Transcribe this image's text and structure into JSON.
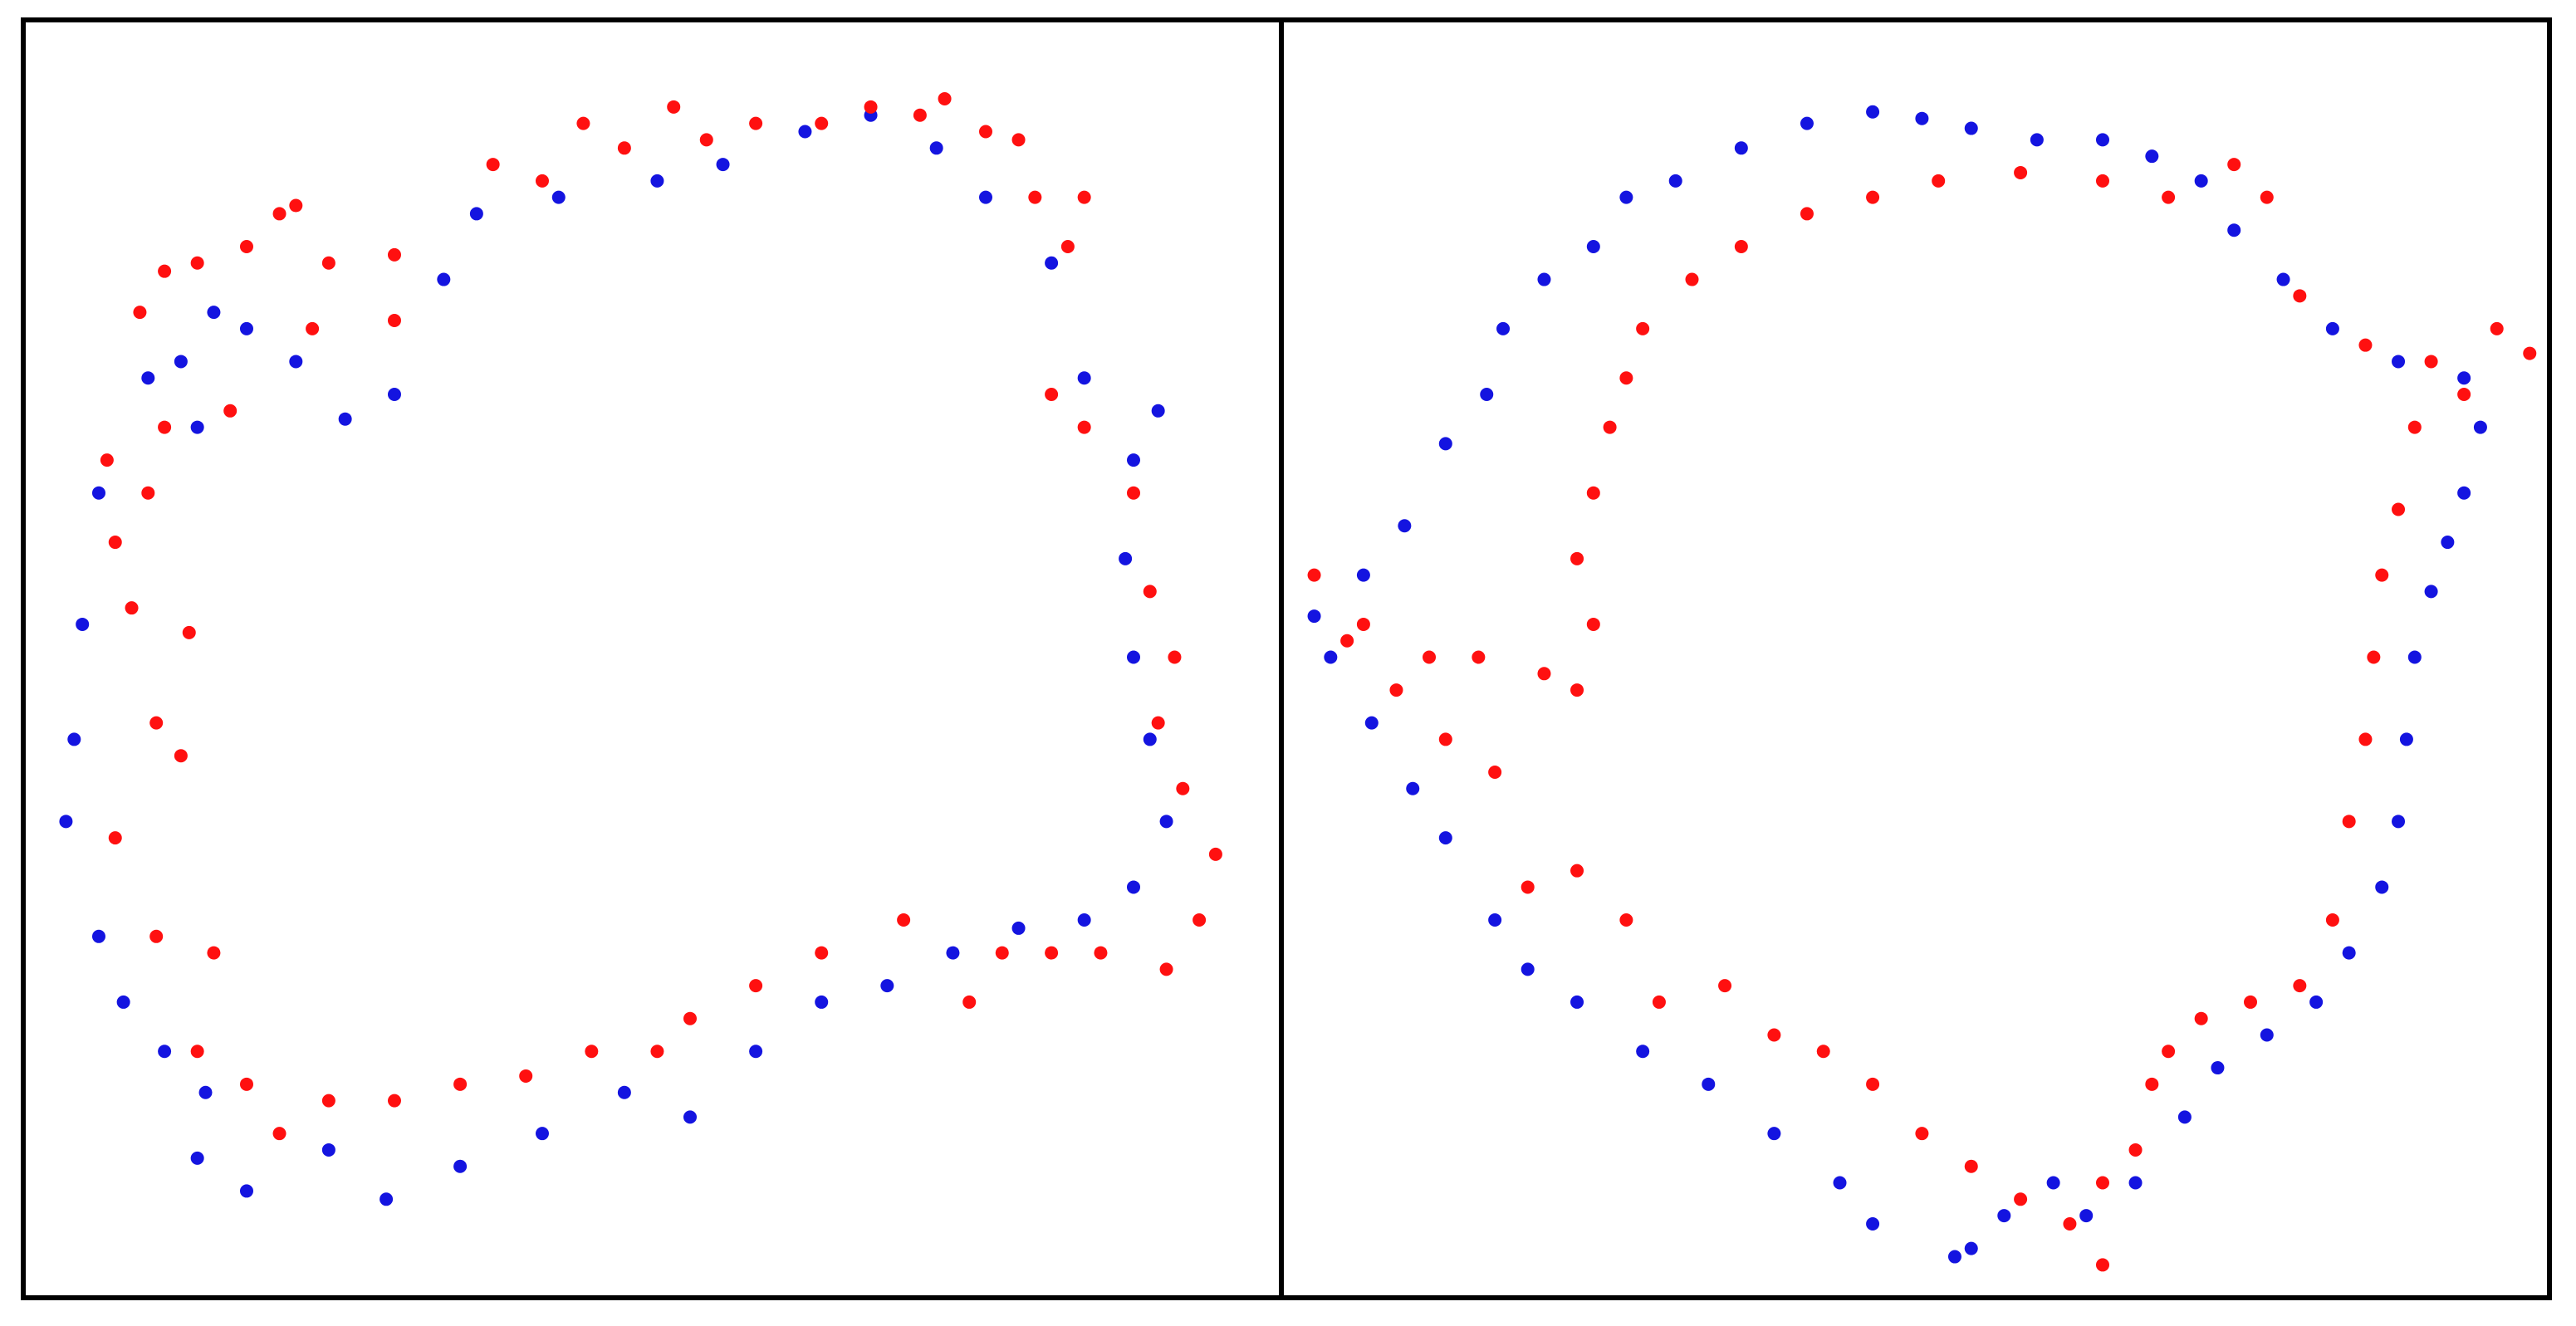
{
  "chart_data": [
    {
      "type": "scatter",
      "xlim": [
        14,
        780
      ],
      "ylim": [
        790,
        12
      ],
      "series": [
        {
          "color": "#1414e0",
          "x": [
            120,
            150,
            200,
            235,
            280,
            330,
            380,
            420,
            460,
            500,
            540,
            580,
            620,
            660,
            690,
            710,
            700,
            690,
            685,
            690,
            705,
            660,
            640,
            600,
            570,
            530,
            490,
            440,
            400,
            340,
            290,
            270,
            240,
            210,
            180,
            150,
            130,
            110,
            120,
            90,
            60,
            50,
            45,
            40,
            60,
            75,
            100,
            125
          ],
          "values": [
            705,
            725,
            700,
            730,
            710,
            690,
            665,
            680,
            640,
            610,
            600,
            580,
            565,
            560,
            540,
            500,
            450,
            400,
            340,
            280,
            250,
            230,
            160,
            120,
            90,
            70,
            80,
            100,
            110,
            120,
            130,
            170,
            240,
            255,
            220,
            200,
            190,
            220,
            260,
            230,
            300,
            380,
            450,
            500,
            570,
            610,
            640,
            665
          ]
        },
        {
          "color": "#ff1010",
          "x": [
            85,
            100,
            120,
            150,
            170,
            180,
            200,
            190,
            240,
            240,
            300,
            330,
            355,
            380,
            410,
            430,
            460,
            500,
            530,
            560,
            575,
            600,
            620,
            630,
            650,
            660,
            640,
            660,
            690,
            700,
            715,
            705,
            720,
            740,
            730,
            710,
            670,
            640,
            610,
            590,
            550,
            500,
            460,
            420,
            400,
            360,
            320,
            280,
            240,
            200,
            170,
            150,
            120,
            130,
            95,
            70,
            110,
            95,
            115,
            80,
            70,
            90,
            65,
            100,
            140
          ],
          "values": [
            190,
            165,
            160,
            150,
            130,
            125,
            160,
            200,
            155,
            195,
            100,
            110,
            75,
            90,
            65,
            85,
            75,
            75,
            65,
            70,
            60,
            80,
            85,
            120,
            150,
            120,
            240,
            260,
            300,
            360,
            400,
            440,
            480,
            520,
            560,
            590,
            580,
            580,
            580,
            610,
            560,
            580,
            600,
            620,
            640,
            640,
            655,
            660,
            670,
            670,
            690,
            660,
            640,
            580,
            570,
            510,
            460,
            440,
            385,
            370,
            330,
            300,
            280,
            260,
            250
          ]
        }
      ]
    },
    {
      "type": "scatter",
      "xlim": [
        780,
        1552
      ],
      "ylim": [
        790,
        12
      ],
      "series": [
        {
          "color": "#1414e0",
          "x": [
            1190,
            1140,
            1120,
            1080,
            1040,
            1000,
            960,
            930,
            910,
            880,
            860,
            835,
            810,
            800,
            830,
            855,
            880,
            905,
            915,
            940,
            970,
            990,
            1020,
            1060,
            1100,
            1140,
            1170,
            1200,
            1240,
            1280,
            1310,
            1340,
            1360,
            1390,
            1420,
            1460,
            1500,
            1510,
            1500,
            1490,
            1480,
            1470,
            1465,
            1460,
            1450,
            1430,
            1410,
            1380,
            1350,
            1330,
            1300,
            1270,
            1250,
            1220,
            1200
          ],
          "values": [
            765,
            745,
            720,
            690,
            660,
            640,
            610,
            590,
            560,
            510,
            480,
            440,
            400,
            375,
            350,
            320,
            270,
            240,
            200,
            170,
            150,
            120,
            110,
            90,
            75,
            68,
            72,
            78,
            85,
            85,
            95,
            110,
            140,
            170,
            200,
            220,
            230,
            260,
            300,
            330,
            360,
            400,
            450,
            500,
            540,
            580,
            610,
            630,
            650,
            680,
            720,
            740,
            720,
            740,
            760
          ]
        },
        {
          "color": "#ff1010",
          "x": [
            1280,
            1260,
            1230,
            1200,
            1170,
            1140,
            1110,
            1080,
            1050,
            1010,
            990,
            960,
            930,
            910,
            880,
            850,
            820,
            800,
            830,
            870,
            900,
            940,
            960,
            970,
            960,
            970,
            980,
            990,
            1000,
            1030,
            1060,
            1100,
            1140,
            1180,
            1230,
            1280,
            1320,
            1360,
            1380,
            1400,
            1440,
            1480,
            1520,
            1540,
            1500,
            1470,
            1460,
            1450,
            1445,
            1440,
            1430,
            1420,
            1400,
            1370,
            1340,
            1310,
            1300,
            1280,
            1320
          ],
          "values": [
            770,
            745,
            730,
            710,
            690,
            660,
            640,
            630,
            600,
            610,
            560,
            530,
            540,
            470,
            450,
            420,
            390,
            350,
            380,
            400,
            400,
            410,
            420,
            380,
            340,
            300,
            260,
            230,
            200,
            170,
            150,
            130,
            120,
            110,
            105,
            110,
            120,
            100,
            120,
            180,
            210,
            220,
            200,
            215,
            240,
            260,
            310,
            350,
            400,
            450,
            500,
            560,
            600,
            610,
            620,
            660,
            700,
            720,
            640
          ]
        }
      ]
    }
  ]
}
